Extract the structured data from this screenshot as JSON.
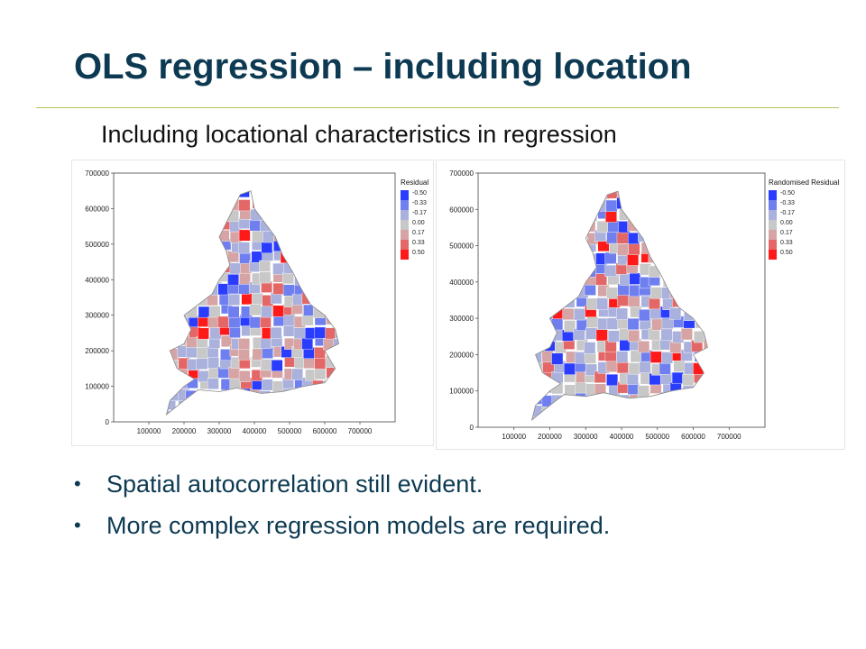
{
  "slide": {
    "title": "OLS regression – including location",
    "subtitle": "Including locational characteristics in regression",
    "bullets": [
      "Spatial autocorrelation still evident.",
      "More complex regression models are required."
    ]
  },
  "maps": [
    {
      "legend_title": "Residual",
      "legend_labels": [
        "-0.50",
        "-0.33",
        "-0.17",
        "0.00",
        "0.17",
        "0.33",
        "0.50"
      ],
      "legend_colors": [
        "#2a3dff",
        "#6f7fef",
        "#a9b1dc",
        "#c8c8c8",
        "#d6a4a4",
        "#e46767",
        "#ff1a1a"
      ],
      "x_ticks": [
        "100000",
        "200000",
        "300000",
        "400000",
        "500000",
        "600000",
        "700000"
      ],
      "y_ticks": [
        "0",
        "100000",
        "200000",
        "300000",
        "400000",
        "500000",
        "600000",
        "700000"
      ]
    },
    {
      "legend_title": "Randomised Residual",
      "legend_labels": [
        "-0.50",
        "-0.33",
        "-0.17",
        "0.00",
        "0.17",
        "0.33",
        "0.50"
      ],
      "legend_colors": [
        "#2a3dff",
        "#6f7fef",
        "#a9b1dc",
        "#c8c8c8",
        "#d6a4a4",
        "#e46767",
        "#ff1a1a"
      ],
      "x_ticks": [
        "100000",
        "200000",
        "300000",
        "400000",
        "500000",
        "600000",
        "700000"
      ],
      "y_ticks": [
        "0",
        "100000",
        "200000",
        "300000",
        "400000",
        "500000",
        "600000",
        "700000"
      ]
    }
  ]
}
